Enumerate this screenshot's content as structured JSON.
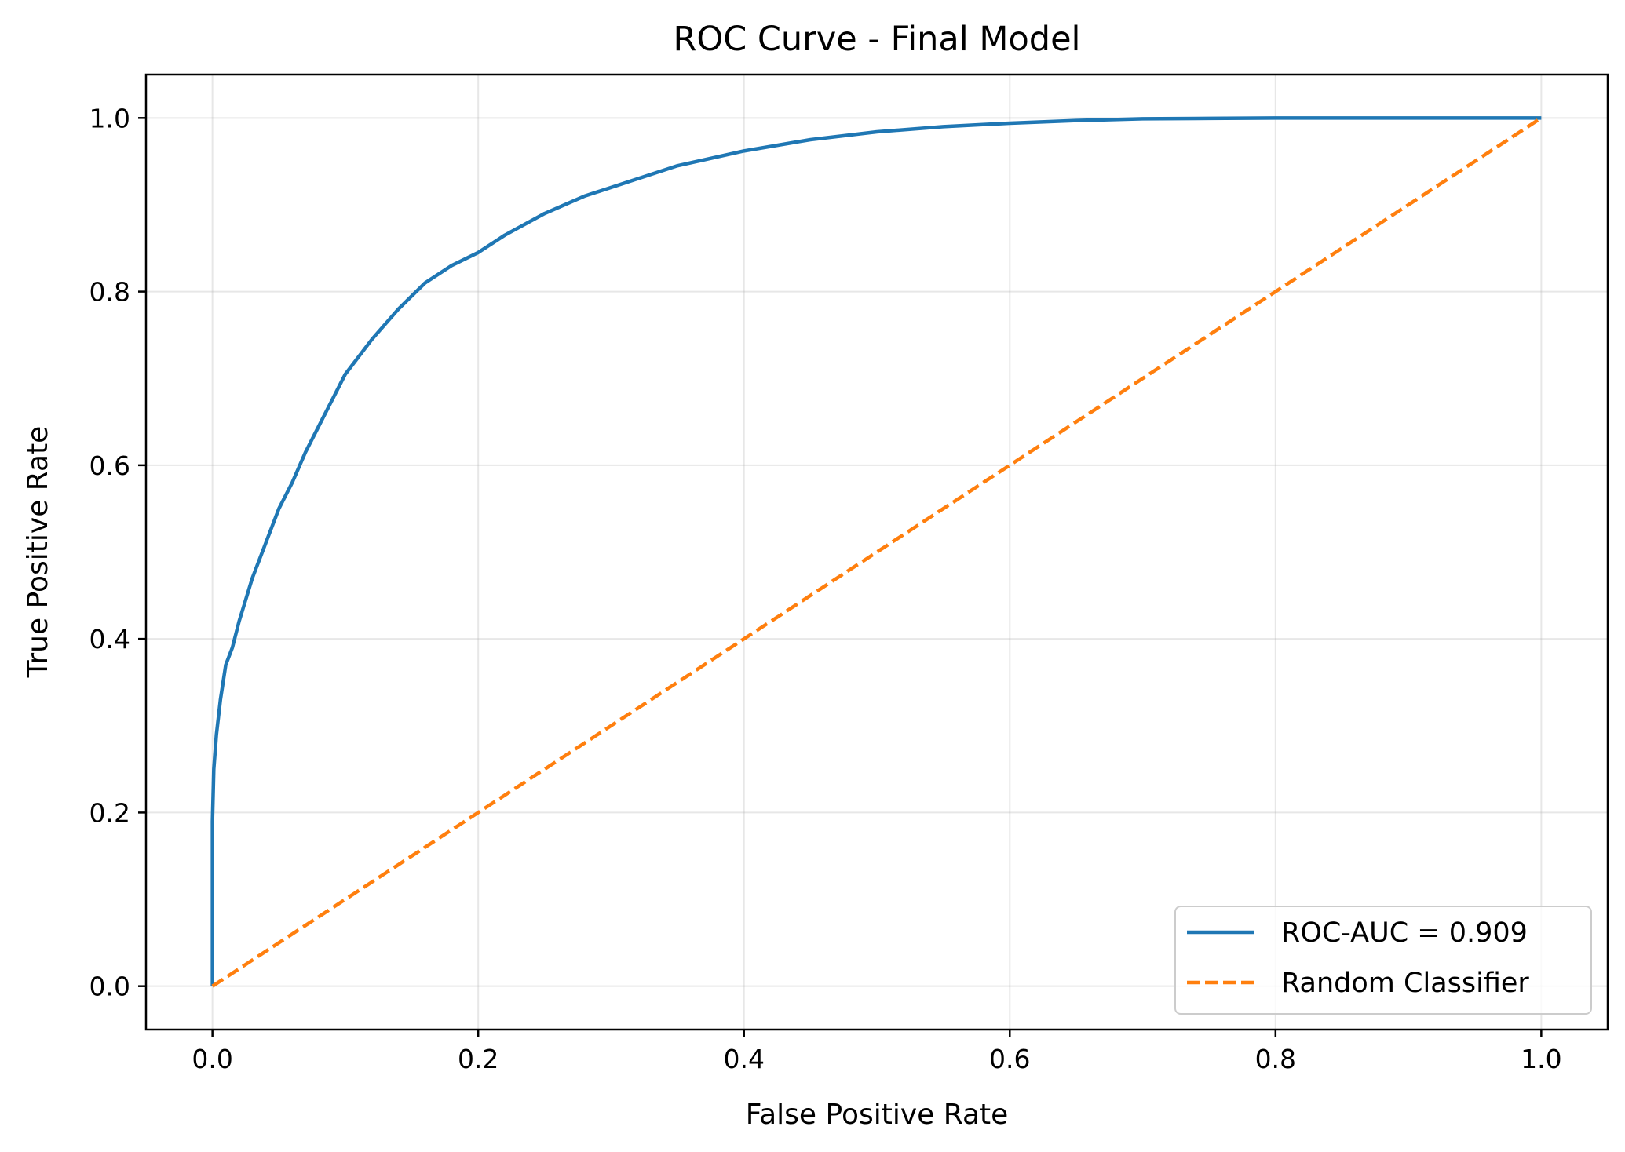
{
  "chart_data": {
    "type": "line",
    "title": "ROC Curve - Final Model",
    "xlabel": "False Positive Rate",
    "ylabel": "True Positive Rate",
    "xlim": [
      -0.05,
      1.05
    ],
    "ylim": [
      -0.05,
      1.05
    ],
    "x_ticks": [
      "0.0",
      "0.2",
      "0.4",
      "0.6",
      "0.8",
      "1.0"
    ],
    "y_ticks": [
      "0.0",
      "0.2",
      "0.4",
      "0.6",
      "0.8",
      "1.0"
    ],
    "grid": true,
    "legend_position": "lower-right",
    "series": [
      {
        "name": "ROC-AUC = 0.909",
        "color": "#1f77b4",
        "style": "solid",
        "x": [
          0.0,
          0.0,
          0.001,
          0.003,
          0.006,
          0.01,
          0.015,
          0.02,
          0.03,
          0.04,
          0.05,
          0.06,
          0.07,
          0.08,
          0.09,
          0.1,
          0.12,
          0.14,
          0.16,
          0.18,
          0.2,
          0.22,
          0.25,
          0.28,
          0.3,
          0.35,
          0.4,
          0.45,
          0.5,
          0.55,
          0.6,
          0.65,
          0.7,
          0.75,
          0.8,
          0.85,
          0.9,
          1.0
        ],
        "y": [
          0.0,
          0.19,
          0.25,
          0.29,
          0.33,
          0.37,
          0.39,
          0.42,
          0.47,
          0.51,
          0.55,
          0.58,
          0.615,
          0.645,
          0.675,
          0.705,
          0.745,
          0.78,
          0.81,
          0.83,
          0.845,
          0.865,
          0.89,
          0.91,
          0.92,
          0.945,
          0.962,
          0.975,
          0.984,
          0.99,
          0.994,
          0.997,
          0.999,
          0.9995,
          1.0,
          1.0,
          1.0,
          1.0
        ]
      },
      {
        "name": "Random Classifier",
        "color": "#ff7f0e",
        "style": "dashed",
        "x": [
          0.0,
          1.0
        ],
        "y": [
          0.0,
          1.0
        ]
      }
    ]
  }
}
